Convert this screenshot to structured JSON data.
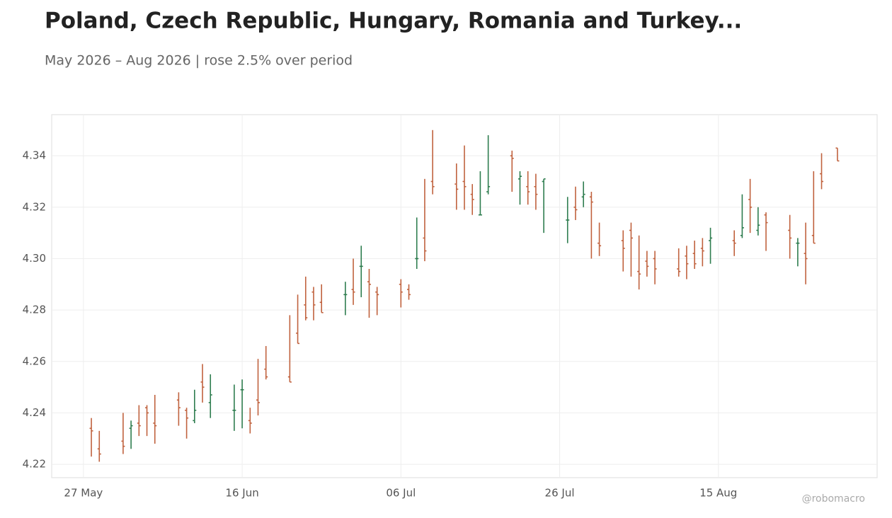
{
  "chart_data": {
    "type": "ohlc",
    "title": "Poland, Czech Republic, Hungary, Romania and Turkey...",
    "subtitle": "May 2026 – Aug 2026 | rose 2.5% over period",
    "watermark": "@robomacro",
    "up_color": "#2e7d4f",
    "down_color": "#c0623e",
    "grid": true,
    "x": [
      "2026-05-28",
      "2026-05-29",
      "2026-06-01",
      "2026-06-02",
      "2026-06-03",
      "2026-06-04",
      "2026-06-05",
      "2026-06-08",
      "2026-06-09",
      "2026-06-10",
      "2026-06-11",
      "2026-06-12",
      "2026-06-15",
      "2026-06-16",
      "2026-06-17",
      "2026-06-18",
      "2026-06-19",
      "2026-06-22",
      "2026-06-23",
      "2026-06-24",
      "2026-06-25",
      "2026-06-26",
      "2026-06-29",
      "2026-06-30",
      "2026-07-01",
      "2026-07-02",
      "2026-07-03",
      "2026-07-06",
      "2026-07-07",
      "2026-07-08",
      "2026-07-09",
      "2026-07-10",
      "2026-07-13",
      "2026-07-14",
      "2026-07-15",
      "2026-07-16",
      "2026-07-17",
      "2026-07-20",
      "2026-07-21",
      "2026-07-22",
      "2026-07-23",
      "2026-07-24",
      "2026-07-27",
      "2026-07-28",
      "2026-07-29",
      "2026-07-30",
      "2026-07-31",
      "2026-08-03",
      "2026-08-04",
      "2026-08-05",
      "2026-08-06",
      "2026-08-07",
      "2026-08-10",
      "2026-08-11",
      "2026-08-12",
      "2026-08-13",
      "2026-08-14",
      "2026-08-17",
      "2026-08-18",
      "2026-08-19",
      "2026-08-20",
      "2026-08-21",
      "2026-08-24",
      "2026-08-25",
      "2026-08-26",
      "2026-08-27",
      "2026-08-28",
      "2026-08-30"
    ],
    "open": [
      4.234,
      4.226,
      4.229,
      4.234,
      4.236,
      4.242,
      4.236,
      4.245,
      4.241,
      4.237,
      4.252,
      4.244,
      4.241,
      4.249,
      4.237,
      4.245,
      4.257,
      4.254,
      4.271,
      4.282,
      4.287,
      4.283,
      4.286,
      4.288,
      4.297,
      4.291,
      4.287,
      4.29,
      4.288,
      4.3,
      4.308,
      4.33,
      4.329,
      4.33,
      4.325,
      4.317,
      4.326,
      4.34,
      4.331,
      4.328,
      4.328,
      4.33,
      4.315,
      4.32,
      4.324,
      4.324,
      4.306,
      4.307,
      4.311,
      4.295,
      4.299,
      4.3,
      4.296,
      4.301,
      4.302,
      4.304,
      4.307,
      4.307,
      4.309,
      4.323,
      4.311,
      4.317,
      4.311,
      4.306,
      4.302,
      4.309,
      4.333,
      4.343
    ],
    "high": [
      4.238,
      4.233,
      4.24,
      4.237,
      4.243,
      4.243,
      4.247,
      4.248,
      4.242,
      4.249,
      4.259,
      4.255,
      4.251,
      4.253,
      4.242,
      4.261,
      4.266,
      4.278,
      4.286,
      4.293,
      4.289,
      4.29,
      4.291,
      4.3,
      4.305,
      4.296,
      4.289,
      4.292,
      4.29,
      4.316,
      4.331,
      4.35,
      4.337,
      4.344,
      4.329,
      4.334,
      4.348,
      4.342,
      4.334,
      4.334,
      4.333,
      4.331,
      4.324,
      4.328,
      4.33,
      4.326,
      4.314,
      4.311,
      4.314,
      4.309,
      4.303,
      4.303,
      4.304,
      4.305,
      4.307,
      4.308,
      4.312,
      4.311,
      4.325,
      4.331,
      4.32,
      4.318,
      4.317,
      4.308,
      4.314,
      4.334,
      4.341,
      4.343
    ],
    "low": [
      4.223,
      4.221,
      4.224,
      4.226,
      4.231,
      4.231,
      4.228,
      4.235,
      4.23,
      4.236,
      4.244,
      4.238,
      4.233,
      4.234,
      4.232,
      4.239,
      4.253,
      4.252,
      4.267,
      4.276,
      4.276,
      4.279,
      4.278,
      4.282,
      4.285,
      4.277,
      4.278,
      4.281,
      4.284,
      4.296,
      4.299,
      4.325,
      4.319,
      4.319,
      4.317,
      4.317,
      4.325,
      4.326,
      4.321,
      4.321,
      4.319,
      4.31,
      4.306,
      4.315,
      4.32,
      4.3,
      4.301,
      4.295,
      4.293,
      4.288,
      4.293,
      4.29,
      4.293,
      4.292,
      4.296,
      4.297,
      4.298,
      4.301,
      4.308,
      4.31,
      4.309,
      4.303,
      4.3,
      4.297,
      4.29,
      4.306,
      4.327,
      4.338
    ],
    "close": [
      4.233,
      4.224,
      4.227,
      4.235,
      4.235,
      4.24,
      4.235,
      4.242,
      4.238,
      4.241,
      4.25,
      4.247,
      4.241,
      4.249,
      4.236,
      4.244,
      4.254,
      4.252,
      4.267,
      4.277,
      4.282,
      4.279,
      4.286,
      4.287,
      4.297,
      4.29,
      4.286,
      4.287,
      4.286,
      4.3,
      4.303,
      4.328,
      4.327,
      4.328,
      4.323,
      4.317,
      4.328,
      4.339,
      4.332,
      4.326,
      4.325,
      4.331,
      4.315,
      4.319,
      4.325,
      4.322,
      4.305,
      4.304,
      4.308,
      4.294,
      4.297,
      4.296,
      4.295,
      4.298,
      4.298,
      4.303,
      4.308,
      4.306,
      4.312,
      4.32,
      4.313,
      4.314,
      4.308,
      4.306,
      4.3,
      4.306,
      4.33,
      4.338
    ],
    "xlim": [
      "2026-05-23",
      "2026-09-04"
    ],
    "xticks": [
      {
        "value": "2026-05-27",
        "label": "27 May"
      },
      {
        "value": "2026-06-16",
        "label": "16 Jun"
      },
      {
        "value": "2026-07-06",
        "label": "06 Jul"
      },
      {
        "value": "2026-07-26",
        "label": "26 Jul"
      },
      {
        "value": "2026-08-15",
        "label": "15 Aug"
      }
    ],
    "ylim": [
      4.2148,
      4.356
    ],
    "yticks": [
      4.22,
      4.24,
      4.26,
      4.28,
      {
        "value": 4.3,
        "label": "4.30"
      },
      4.32,
      4.34
    ]
  }
}
